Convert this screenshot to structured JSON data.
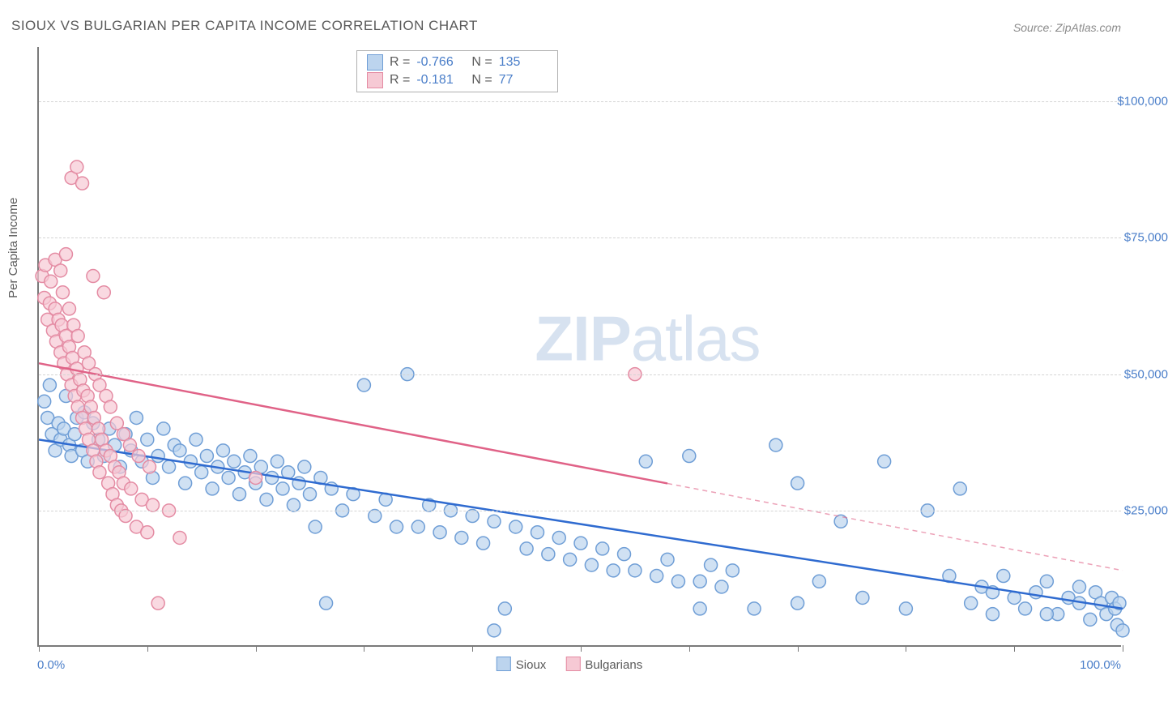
{
  "title": "SIOUX VS BULGARIAN PER CAPITA INCOME CORRELATION CHART",
  "source": "Source: ZipAtlas.com",
  "watermark_bold": "ZIP",
  "watermark_rest": "atlas",
  "yaxis_title": "Per Capita Income",
  "xaxis_start": "0.0%",
  "xaxis_end": "100.0%",
  "chart": {
    "type": "scatter",
    "xlim": [
      0,
      100
    ],
    "ylim": [
      0,
      110000
    ],
    "y_gridlines": [
      25000,
      50000,
      75000,
      100000
    ],
    "y_grid_labels": [
      "$25,000",
      "$50,000",
      "$75,000",
      "$100,000"
    ],
    "x_tick_positions": [
      0,
      10,
      20,
      30,
      40,
      50,
      60,
      70,
      80,
      90,
      100
    ],
    "background_color": "#ffffff",
    "grid_color": "#d4d4d4",
    "axis_color": "#7a7a7a",
    "label_color": "#4a7ec9",
    "marker_radius": 8,
    "marker_stroke_width": 1.5,
    "trend_stroke_width": 2.5,
    "series": [
      {
        "name": "Sioux",
        "fill": "#bcd4ee",
        "stroke": "#6f9ed6",
        "line_color": "#2f6bd0",
        "R": "-0.766",
        "N": "135",
        "trend": {
          "x1": 0,
          "y1": 38000,
          "x2": 100,
          "y2": 7000,
          "xdata_max": 100
        },
        "points": [
          [
            0.5,
            45000
          ],
          [
            0.8,
            42000
          ],
          [
            1,
            48000
          ],
          [
            1.2,
            39000
          ],
          [
            1.5,
            36000
          ],
          [
            1.8,
            41000
          ],
          [
            2,
            38000
          ],
          [
            2.3,
            40000
          ],
          [
            2.5,
            46000
          ],
          [
            2.8,
            37000
          ],
          [
            3,
            35000
          ],
          [
            3.3,
            39000
          ],
          [
            3.5,
            42000
          ],
          [
            4,
            36000
          ],
          [
            4.2,
            43000
          ],
          [
            4.5,
            34000
          ],
          [
            5,
            41000
          ],
          [
            5.5,
            38000
          ],
          [
            6,
            35000
          ],
          [
            6.5,
            40000
          ],
          [
            7,
            37000
          ],
          [
            7.5,
            33000
          ],
          [
            8,
            39000
          ],
          [
            8.5,
            36000
          ],
          [
            9,
            42000
          ],
          [
            9.5,
            34000
          ],
          [
            10,
            38000
          ],
          [
            10.5,
            31000
          ],
          [
            11,
            35000
          ],
          [
            11.5,
            40000
          ],
          [
            12,
            33000
          ],
          [
            12.5,
            37000
          ],
          [
            13,
            36000
          ],
          [
            13.5,
            30000
          ],
          [
            14,
            34000
          ],
          [
            14.5,
            38000
          ],
          [
            15,
            32000
          ],
          [
            15.5,
            35000
          ],
          [
            16,
            29000
          ],
          [
            16.5,
            33000
          ],
          [
            17,
            36000
          ],
          [
            17.5,
            31000
          ],
          [
            18,
            34000
          ],
          [
            18.5,
            28000
          ],
          [
            19,
            32000
          ],
          [
            19.5,
            35000
          ],
          [
            20,
            30000
          ],
          [
            20.5,
            33000
          ],
          [
            21,
            27000
          ],
          [
            21.5,
            31000
          ],
          [
            22,
            34000
          ],
          [
            22.5,
            29000
          ],
          [
            23,
            32000
          ],
          [
            23.5,
            26000
          ],
          [
            24,
            30000
          ],
          [
            24.5,
            33000
          ],
          [
            25,
            28000
          ],
          [
            25.5,
            22000
          ],
          [
            26,
            31000
          ],
          [
            26.5,
            8000
          ],
          [
            27,
            29000
          ],
          [
            28,
            25000
          ],
          [
            29,
            28000
          ],
          [
            30,
            48000
          ],
          [
            31,
            24000
          ],
          [
            32,
            27000
          ],
          [
            33,
            22000
          ],
          [
            34,
            50000
          ],
          [
            35,
            22000
          ],
          [
            36,
            26000
          ],
          [
            37,
            21000
          ],
          [
            38,
            25000
          ],
          [
            39,
            20000
          ],
          [
            40,
            24000
          ],
          [
            41,
            19000
          ],
          [
            42,
            23000
          ],
          [
            43,
            7000
          ],
          [
            44,
            22000
          ],
          [
            45,
            18000
          ],
          [
            46,
            21000
          ],
          [
            47,
            17000
          ],
          [
            48,
            20000
          ],
          [
            49,
            16000
          ],
          [
            50,
            19000
          ],
          [
            51,
            15000
          ],
          [
            52,
            18000
          ],
          [
            53,
            14000
          ],
          [
            54,
            17000
          ],
          [
            55,
            14000
          ],
          [
            56,
            34000
          ],
          [
            57,
            13000
          ],
          [
            58,
            16000
          ],
          [
            59,
            12000
          ],
          [
            60,
            35000
          ],
          [
            61,
            12000
          ],
          [
            62,
            15000
          ],
          [
            63,
            11000
          ],
          [
            64,
            14000
          ],
          [
            66,
            7000
          ],
          [
            68,
            37000
          ],
          [
            70,
            30000
          ],
          [
            72,
            12000
          ],
          [
            74,
            23000
          ],
          [
            76,
            9000
          ],
          [
            78,
            34000
          ],
          [
            80,
            7000
          ],
          [
            82,
            25000
          ],
          [
            84,
            13000
          ],
          [
            85,
            29000
          ],
          [
            86,
            8000
          ],
          [
            87,
            11000
          ],
          [
            88,
            6000
          ],
          [
            89,
            13000
          ],
          [
            90,
            9000
          ],
          [
            91,
            7000
          ],
          [
            92,
            10000
          ],
          [
            93,
            12000
          ],
          [
            94,
            6000
          ],
          [
            95,
            9000
          ],
          [
            96,
            11000
          ],
          [
            97,
            5000
          ],
          [
            97.5,
            10000
          ],
          [
            98,
            8000
          ],
          [
            98.5,
            6000
          ],
          [
            99,
            9000
          ],
          [
            99.3,
            7000
          ],
          [
            99.5,
            4000
          ],
          [
            99.7,
            8000
          ],
          [
            100,
            3000
          ],
          [
            42,
            3000
          ],
          [
            61,
            7000
          ],
          [
            70,
            8000
          ],
          [
            88,
            10000
          ],
          [
            93,
            6000
          ],
          [
            96,
            8000
          ]
        ]
      },
      {
        "name": "Bulgarians",
        "fill": "#f6c9d4",
        "stroke": "#e48ba3",
        "line_color": "#e06287",
        "R": "-0.181",
        "N": "77",
        "trend": {
          "x1": 0,
          "y1": 52000,
          "x2": 100,
          "y2": 14000,
          "xdata_max": 58
        },
        "points": [
          [
            0.3,
            68000
          ],
          [
            0.5,
            64000
          ],
          [
            0.6,
            70000
          ],
          [
            0.8,
            60000
          ],
          [
            1,
            63000
          ],
          [
            1.1,
            67000
          ],
          [
            1.3,
            58000
          ],
          [
            1.5,
            62000
          ],
          [
            1.6,
            56000
          ],
          [
            1.8,
            60000
          ],
          [
            2,
            54000
          ],
          [
            2.1,
            59000
          ],
          [
            2.3,
            52000
          ],
          [
            2.5,
            57000
          ],
          [
            2.6,
            50000
          ],
          [
            2.8,
            55000
          ],
          [
            3,
            48000
          ],
          [
            3.1,
            53000
          ],
          [
            3.3,
            46000
          ],
          [
            3.5,
            51000
          ],
          [
            3.6,
            44000
          ],
          [
            3.8,
            49000
          ],
          [
            4,
            42000
          ],
          [
            4.1,
            47000
          ],
          [
            4.3,
            40000
          ],
          [
            4.5,
            46000
          ],
          [
            4.6,
            38000
          ],
          [
            4.8,
            44000
          ],
          [
            5,
            36000
          ],
          [
            5.1,
            42000
          ],
          [
            5.3,
            34000
          ],
          [
            5.5,
            40000
          ],
          [
            5.6,
            32000
          ],
          [
            5.8,
            38000
          ],
          [
            6,
            65000
          ],
          [
            6.2,
            36000
          ],
          [
            6.4,
            30000
          ],
          [
            6.6,
            35000
          ],
          [
            6.8,
            28000
          ],
          [
            7,
            33000
          ],
          [
            7.2,
            26000
          ],
          [
            7.4,
            32000
          ],
          [
            7.6,
            25000
          ],
          [
            7.8,
            30000
          ],
          [
            8,
            24000
          ],
          [
            8.5,
            29000
          ],
          [
            9,
            22000
          ],
          [
            9.5,
            27000
          ],
          [
            10,
            21000
          ],
          [
            10.5,
            26000
          ],
          [
            11,
            8000
          ],
          [
            12,
            25000
          ],
          [
            13,
            20000
          ],
          [
            1.5,
            71000
          ],
          [
            2,
            69000
          ],
          [
            2.5,
            72000
          ],
          [
            3,
            86000
          ],
          [
            3.5,
            88000
          ],
          [
            4,
            85000
          ],
          [
            5,
            68000
          ],
          [
            2.2,
            65000
          ],
          [
            2.8,
            62000
          ],
          [
            3.2,
            59000
          ],
          [
            3.6,
            57000
          ],
          [
            4.2,
            54000
          ],
          [
            4.6,
            52000
          ],
          [
            5.2,
            50000
          ],
          [
            5.6,
            48000
          ],
          [
            6.2,
            46000
          ],
          [
            6.6,
            44000
          ],
          [
            7.2,
            41000
          ],
          [
            7.8,
            39000
          ],
          [
            8.4,
            37000
          ],
          [
            9.2,
            35000
          ],
          [
            10.2,
            33000
          ],
          [
            55,
            50000
          ],
          [
            20,
            31000
          ]
        ]
      }
    ]
  },
  "legend": {
    "sioux": "Sioux",
    "bulgarians": "Bulgarians"
  },
  "stats_labels": {
    "r": "R =",
    "n": "N ="
  }
}
